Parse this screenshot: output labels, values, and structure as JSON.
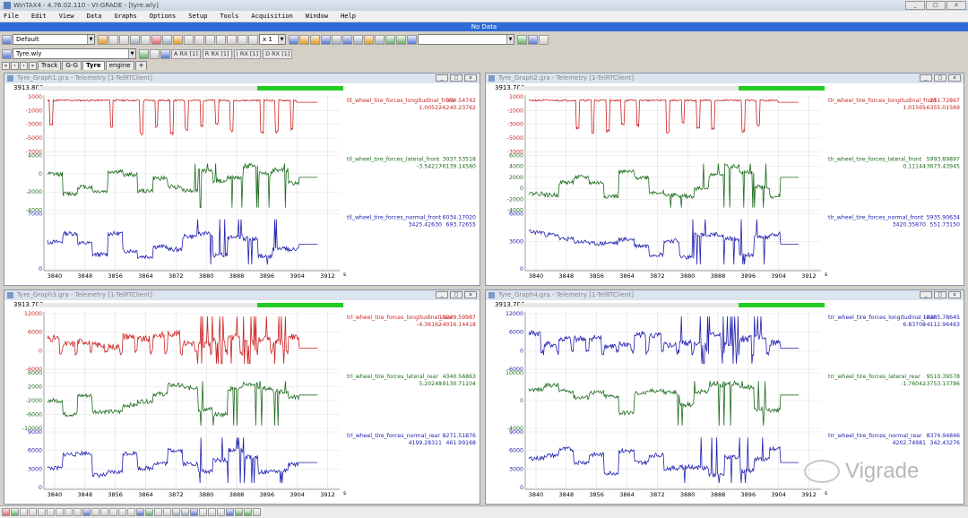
{
  "app": {
    "title": "WinTAX4 - 4.76.02.110 - VI-GRADE - [tyre.wly]"
  },
  "menu": [
    "File",
    "Edit",
    "View",
    "Data",
    "Graphs",
    "Options",
    "Setup",
    "Tools",
    "Acquisition",
    "Window",
    "Help"
  ],
  "nodata": "No Data",
  "toolbar": {
    "layout": "Default",
    "zoom": "x 1",
    "workspace": "Tyre.wly"
  },
  "rx": [
    "A RX [1]",
    "R RX [1]",
    "| RX [1]",
    "D RX [1]"
  ],
  "tabs": [
    "Track",
    "G-G",
    "Tyre",
    "engine",
    "+"
  ],
  "watermark": "Vigrade",
  "graphs": [
    {
      "title": "Tyre_Graph1.gra - Telemetry [1-TelRTClient]",
      "time": "3913.800",
      "progress": {
        "start": 0.72,
        "end": 1.0
      },
      "xticks": [
        "3840",
        "3848",
        "3856",
        "3864",
        "3872",
        "3880",
        "3888",
        "3896",
        "3904",
        "3912"
      ],
      "xunit": "s",
      "panels": [
        {
          "color": "#cc2222",
          "yticks": [
            "1000",
            "-1000",
            "-3000",
            "-5000",
            "-7000"
          ],
          "yrange": [
            -7000,
            1000
          ],
          "name": "tll_wheel_tire_forces_longitudinal_front",
          "v1": "354.54742",
          "v2a": "1.00522",
          "v2b": "-6240.23762",
          "seed": 11,
          "style": "long"
        },
        {
          "color": "#1d6b1d",
          "yticks": [
            "4000",
            "0",
            "-2000",
            "-4000"
          ],
          "yrange": [
            -4000,
            4000
          ],
          "name": "tll_wheel_tire_forces_lateral_front",
          "v1": "3037.53518",
          "v2a": "-3.54217",
          "v2b": "-6139.14580",
          "seed": 12,
          "style": "lat"
        },
        {
          "color": "#2020b0",
          "yticks": [
            "7000",
            "0"
          ],
          "yrange": [
            0,
            7000
          ],
          "name": "tll_wheel_tire_forces_normal_front",
          "v1": "6034.17020",
          "v2a": "3425.42630",
          "v2b": "693.72655",
          "seed": 13,
          "style": "norm"
        }
      ]
    },
    {
      "title": "Tyre_Graph2.gra - Telemetry [1-TelRTClient]",
      "time": "3913.700",
      "progress": {
        "start": 0.72,
        "end": 1.0
      },
      "xticks": [
        "3840",
        "3848",
        "3856",
        "3864",
        "3872",
        "3880",
        "3888",
        "3896",
        "3904",
        "3912"
      ],
      "xunit": "s",
      "panels": [
        {
          "color": "#cc2222",
          "yticks": [
            "1000",
            "-1000",
            "-3000",
            "-5000",
            "-7000"
          ],
          "yrange": [
            -7000,
            1000
          ],
          "name": "tlr_wheel_tire_forces_longitudinal_front",
          "v1": "251.72867",
          "v2a": "1.01565",
          "v2b": "-6355.01569",
          "seed": 21,
          "style": "long"
        },
        {
          "color": "#1d6b1d",
          "yticks": [
            "6000",
            "4000",
            "2000",
            "0",
            "-2000",
            "-4000"
          ],
          "yrange": [
            -4000,
            6000
          ],
          "name": "tlr_wheel_tire_forces_lateral_front",
          "v1": "5993.89897",
          "v2a": "0.11144",
          "v2b": "-3673.43945",
          "seed": 22,
          "style": "lat"
        },
        {
          "color": "#2020b0",
          "yticks": [
            "6000",
            "3000",
            "0"
          ],
          "yrange": [
            0,
            6000
          ],
          "name": "tlr_wheel_tire_forces_normal_front",
          "v1": "5935.90634",
          "v2a": "3420.35870",
          "v2b": "551.73150",
          "seed": 23,
          "style": "norm"
        }
      ]
    },
    {
      "title": "Tyre_Graph3.gra - Telemetry [1-TelRTClient]",
      "time": "3913.700",
      "progress": {
        "start": 0.72,
        "end": 1.0
      },
      "xticks": [
        "3840",
        "3848",
        "3856",
        "3864",
        "3872",
        "3880",
        "3888",
        "3896",
        "3904",
        "3912"
      ],
      "xunit": "s",
      "panels": [
        {
          "color": "#cc2222",
          "yticks": [
            "12000",
            "6000",
            "0",
            "-6000"
          ],
          "yrange": [
            -6000,
            12000
          ],
          "name": "trl_wheel_tire_forces_longitudinal_rear",
          "v1": "10249.59987",
          "v2a": "-4.36162",
          "v2b": "-4016.14418",
          "seed": 31,
          "style": "longrear"
        },
        {
          "color": "#1d6b1d",
          "yticks": [
            "6000",
            "2000",
            "-2000",
            "-6000",
            "-10000"
          ],
          "yrange": [
            -10000,
            6000
          ],
          "name": "trl_wheel_tire_forces_lateral_rear",
          "v1": "4340.56863",
          "v2a": "5.20248",
          "v2b": "-9130.71104",
          "seed": 32,
          "style": "lat"
        },
        {
          "color": "#2020b0",
          "yticks": [
            "9000",
            "6000",
            "3000",
            "0"
          ],
          "yrange": [
            0,
            9000
          ],
          "name": "trl_wheel_tire_forces_normal_rear",
          "v1": "8271.51876",
          "v2a": "4199.28311",
          "v2b": "461.99168",
          "seed": 33,
          "style": "norm"
        }
      ]
    },
    {
      "title": "Tyre_Graph4.gra - Telemetry [1-TelRTClient]",
      "time": "3913.700",
      "progress": {
        "start": 0.72,
        "end": 1.0
      },
      "xticks": [
        "3840",
        "3848",
        "3856",
        "3864",
        "3872",
        "3880",
        "3888",
        "3896",
        "3904",
        "3912"
      ],
      "xunit": "s",
      "panels": [
        {
          "color": "#2020b0",
          "yticks": [
            "12000",
            "6000",
            "0",
            "-6000"
          ],
          "yrange": [
            -6000,
            12000
          ],
          "name": "trr_wheel_tire_forces_longitudinal_rear",
          "v1": "10385.78645",
          "v2a": "6.83708",
          "v2b": "-4112.96463",
          "seed": 41,
          "style": "longrear"
        },
        {
          "color": "#1d6b1d",
          "yticks": [
            "10000",
            "0",
            "-4000"
          ],
          "yrange": [
            -4000,
            10000
          ],
          "name": "trr_wheel_tire_forces_lateral_rear",
          "v1": "9510.39578",
          "v2a": "-1.76042",
          "v2b": "-3753.13786",
          "seed": 42,
          "style": "lat"
        },
        {
          "color": "#2020b0",
          "yticks": [
            "9000",
            "6000",
            "3000",
            "0"
          ],
          "yrange": [
            0,
            9000
          ],
          "name": "trr_wheel_tire_forces_normal_rear",
          "v1": "8374.94846",
          "v2a": "4202.74981",
          "v2b": "342.43276",
          "seed": 43,
          "style": "norm"
        }
      ]
    }
  ]
}
